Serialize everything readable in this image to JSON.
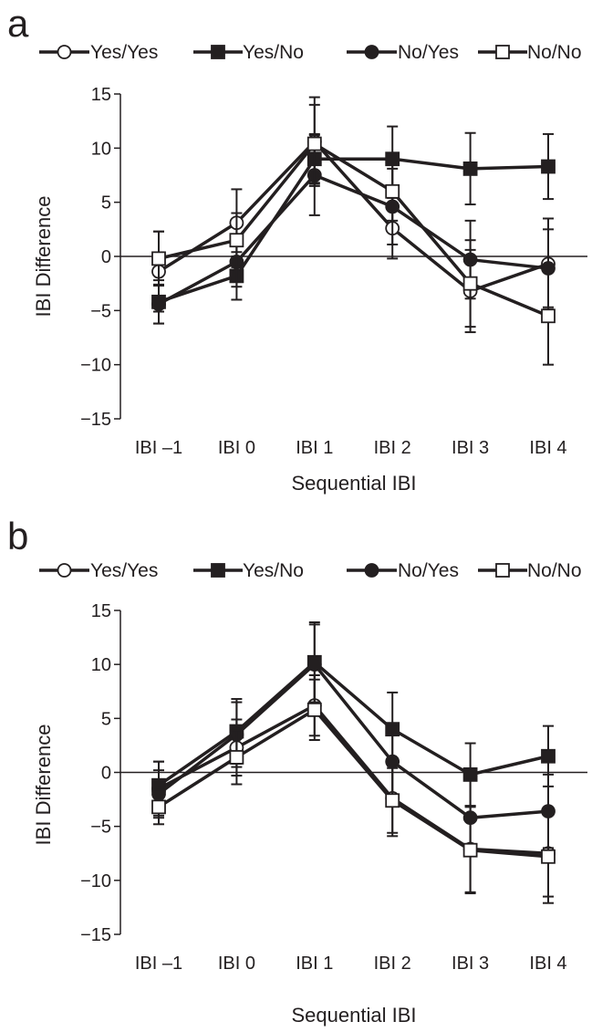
{
  "colors": {
    "ink": "#231f20",
    "background": "#ffffff"
  },
  "chart_data": [
    {
      "panel": "a",
      "type": "line",
      "xlabel": "Sequential IBI",
      "ylabel": "IBI Difference",
      "categories": [
        "IBI –1",
        "IBI 0",
        "IBI 1",
        "IBI 2",
        "IBI 3",
        "IBI 4"
      ],
      "ylim": [
        -15,
        15
      ],
      "yticks": [
        15,
        10,
        5,
        0,
        -5,
        -10,
        -15
      ],
      "yticklabels": [
        "15",
        "10",
        "5",
        "0",
        "−5",
        "−10",
        "−15"
      ],
      "zero_line": true,
      "grid": false,
      "legend": "top",
      "series": [
        {
          "name": "Yes/Yes",
          "marker": "circle-open",
          "values": [
            -1.4,
            3.1,
            10.6,
            2.6,
            -3.2,
            -0.7
          ],
          "error": [
            3.7,
            3.1,
            4.1,
            2.8,
            3.8,
            4.2
          ]
        },
        {
          "name": "Yes/No",
          "marker": "square-filled",
          "values": [
            -4.2,
            -1.8,
            9.0,
            9.0,
            8.1,
            8.3
          ],
          "error": [
            2.0,
            2.2,
            2.3,
            3.0,
            3.3,
            3.0
          ]
        },
        {
          "name": "No/Yes",
          "marker": "circle-filled",
          "values": [
            -4.4,
            -0.5,
            7.5,
            4.6,
            -0.3,
            -1.1
          ],
          "error": [
            1.8,
            2.3,
            3.7,
            3.5,
            3.6,
            3.6
          ]
        },
        {
          "name": "No/No",
          "marker": "square-open",
          "values": [
            -0.2,
            1.5,
            10.4,
            6.0,
            -2.5,
            -5.5
          ],
          "error": [
            2.5,
            2.5,
            3.6,
            2.7,
            4.0,
            4.5
          ]
        }
      ]
    },
    {
      "panel": "b",
      "type": "line",
      "xlabel": "Sequential IBI",
      "ylabel": "IBI Difference",
      "categories": [
        "IBI –1",
        "IBI 0",
        "IBI 1",
        "IBI 2",
        "IBI 3",
        "IBI 4"
      ],
      "ylim": [
        -15,
        15
      ],
      "yticks": [
        15,
        10,
        5,
        0,
        -5,
        -10,
        -15
      ],
      "yticklabels": [
        "15",
        "10",
        "5",
        "0",
        "−5",
        "−10",
        "−15"
      ],
      "zero_line": true,
      "grid": false,
      "legend": "top",
      "series": [
        {
          "name": "Yes/Yes",
          "marker": "circle-open",
          "values": [
            -1.5,
            2.3,
            6.2,
            -2.4,
            -7.1,
            -7.5
          ],
          "error": [
            2.5,
            2.6,
            2.8,
            3.5,
            4.0,
            4.0
          ]
        },
        {
          "name": "Yes/No",
          "marker": "square-filled",
          "values": [
            -1.2,
            3.8,
            10.2,
            4.0,
            -0.2,
            1.5
          ],
          "error": [
            2.2,
            3.0,
            3.7,
            3.4,
            2.9,
            2.8
          ]
        },
        {
          "name": "No/Yes",
          "marker": "circle-filled",
          "values": [
            -2.0,
            3.5,
            10.0,
            1.0,
            -4.2,
            -3.6
          ],
          "error": [
            2.2,
            3.0,
            3.7,
            3.4,
            3.5,
            3.4
          ]
        },
        {
          "name": "No/No",
          "marker": "square-open",
          "values": [
            -3.2,
            1.4,
            5.8,
            -2.6,
            -7.2,
            -7.8
          ],
          "error": [
            1.6,
            2.5,
            2.8,
            3.0,
            4.0,
            4.3
          ]
        }
      ]
    }
  ]
}
